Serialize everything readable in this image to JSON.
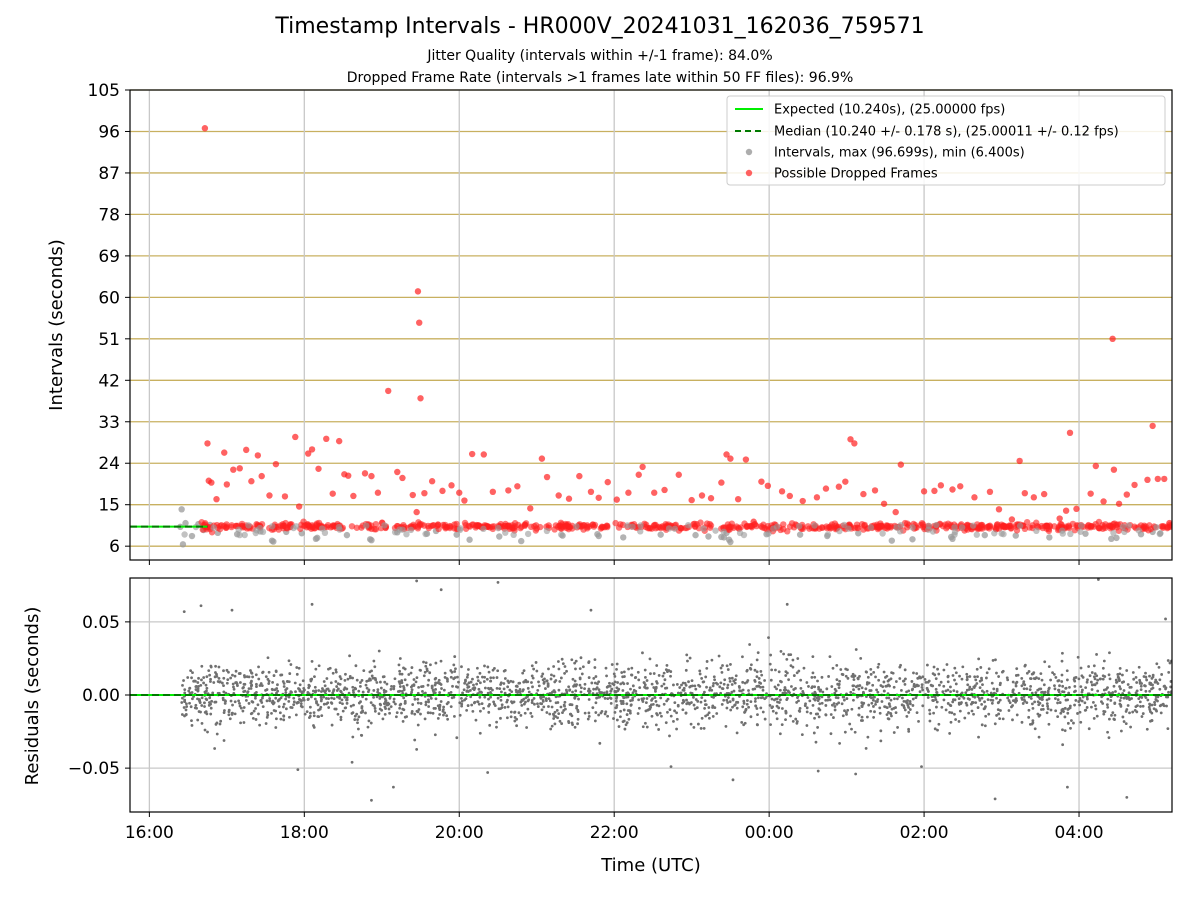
{
  "figure": {
    "title": "Timestamp Intervals - HR000V_20241031_162036_759571",
    "subtitle_1": "Jitter Quality (intervals within +/-1 frame): 84.0%",
    "subtitle_2": "Dropped Frame Rate (intervals >1 frames late within 50 FF files): 96.9%"
  },
  "colors": {
    "expected": "#00ee00",
    "median": "#007a00",
    "intervals": "#999999",
    "dropped": "#ff2020",
    "dropped_line": "#ff0000",
    "residuals": "#707070",
    "hgrid_top": "#c8b060",
    "grid": "#c8c8c8"
  },
  "chart_data": [
    {
      "type": "scatter",
      "panel": "intervals",
      "xlabel": "",
      "ylabel": "Intervals (seconds)",
      "xlim": [
        "15:45",
        "05:12"
      ],
      "ylim": [
        3,
        105
      ],
      "yticks": [
        6,
        15,
        24,
        33,
        42,
        51,
        60,
        69,
        78,
        87,
        96,
        105
      ],
      "xticks": [
        "16:00",
        "18:00",
        "20:00",
        "22:00",
        "00:00",
        "02:00",
        "04:00"
      ],
      "grid": "horizontal and vertical",
      "legend_position": "upper-right",
      "legend": [
        "Expected (10.240s), (25.00000 fps)",
        "Median (10.240 +/- 0.178 s), (25.00011 +/- 0.12 fps)",
        "Intervals, max (96.699s), min (6.400s)",
        "Possible Dropped Frames"
      ],
      "expected_interval": 10.24,
      "median_interval": 10.24,
      "series": [
        {
          "name": "Expected (10.240s), (25.00000 fps)",
          "type": "line",
          "x": [
            "15:45",
            "16:45"
          ],
          "y": [
            10.24,
            10.24
          ]
        },
        {
          "name": "Median (10.240 +/- 0.178 s), (25.00011 +/- 0.12 fps)",
          "type": "dashed-line",
          "x": [
            "15:45",
            "16:45"
          ],
          "y": [
            10.24,
            10.24
          ]
        },
        {
          "name": "Intervals, max (96.699s), min (6.400s)",
          "type": "scatter",
          "points": [
            [
              "16:24",
              10.2
            ],
            [
              "16:25",
              14.0
            ],
            [
              "16:26",
              6.4
            ],
            [
              "16:28",
              11.0
            ],
            [
              "16:33",
              8.2
            ],
            [
              "16:38",
              10.8
            ],
            [
              "16:42",
              9.5
            ],
            [
              "16:47",
              10.6
            ],
            [
              "16:53",
              8.9
            ],
            [
              "17:08",
              8.6
            ],
            [
              "17:26",
              9.2
            ],
            [
              "17:35",
              7.2
            ],
            [
              "17:36",
              7.0
            ],
            [
              "17:46",
              9.1
            ],
            [
              "17:58",
              8.8
            ],
            [
              "18:09",
              7.6
            ],
            [
              "18:10",
              7.8
            ],
            [
              "18:33",
              8.4
            ],
            [
              "18:51",
              7.5
            ],
            [
              "18:52",
              7.3
            ],
            [
              "19:12",
              9.0
            ],
            [
              "19:35",
              8.7
            ],
            [
              "19:42",
              9.3
            ],
            [
              "19:58",
              8.5
            ],
            [
              "20:08",
              7.4
            ],
            [
              "20:31",
              8.1
            ],
            [
              "20:48",
              7.1
            ],
            [
              "21:20",
              8.3
            ],
            [
              "21:47",
              8.6
            ],
            [
              "21:48",
              8.2
            ],
            [
              "22:07",
              7.9
            ],
            [
              "22:36",
              8.5
            ],
            [
              "23:03",
              8.4
            ],
            [
              "23:13",
              8.1
            ],
            [
              "23:23",
              8.0
            ],
            [
              "23:25",
              7.9
            ],
            [
              "23:27",
              8.9
            ],
            [
              "23:29",
              7.4
            ],
            [
              "23:30",
              6.9
            ],
            [
              "23:58",
              8.6
            ],
            [
              "00:24",
              8.5
            ],
            [
              "00:45",
              8.2
            ],
            [
              "01:09",
              8.8
            ],
            [
              "01:35",
              7.2
            ],
            [
              "01:51",
              7.5
            ],
            [
              "02:21",
              8.0
            ],
            [
              "02:22",
              7.6
            ],
            [
              "02:47",
              8.4
            ],
            [
              "03:11",
              8.3
            ],
            [
              "03:37",
              7.9
            ],
            [
              "04:05",
              8.7
            ],
            [
              "04:25",
              7.6
            ],
            [
              "04:29",
              7.8
            ],
            [
              "04:48",
              8.6
            ],
            [
              "04:57",
              9.1
            ],
            [
              "05:03",
              8.8
            ]
          ]
        },
        {
          "name": "Possible Dropped Frames",
          "type": "scatter",
          "points": [
            [
              "16:43",
              96.7
            ],
            [
              "16:45",
              28.3
            ],
            [
              "16:46",
              20.2
            ],
            [
              "16:48",
              19.8
            ],
            [
              "16:52",
              16.2
            ],
            [
              "16:58",
              26.3
            ],
            [
              "17:00",
              19.4
            ],
            [
              "17:05",
              22.6
            ],
            [
              "17:10",
              22.9
            ],
            [
              "17:15",
              26.9
            ],
            [
              "17:19",
              20.1
            ],
            [
              "17:24",
              25.7
            ],
            [
              "17:27",
              21.2
            ],
            [
              "17:33",
              17.0
            ],
            [
              "17:38",
              23.8
            ],
            [
              "17:45",
              16.8
            ],
            [
              "17:53",
              29.7
            ],
            [
              "17:56",
              14.6
            ],
            [
              "18:03",
              26.1
            ],
            [
              "18:06",
              27.0
            ],
            [
              "18:11",
              22.8
            ],
            [
              "18:17",
              29.3
            ],
            [
              "18:22",
              17.4
            ],
            [
              "18:27",
              28.8
            ],
            [
              "18:31",
              21.6
            ],
            [
              "18:34",
              21.3
            ],
            [
              "18:38",
              16.9
            ],
            [
              "18:47",
              21.8
            ],
            [
              "18:52",
              21.2
            ],
            [
              "18:57",
              17.6
            ],
            [
              "19:05",
              39.7
            ],
            [
              "19:12",
              22.1
            ],
            [
              "19:16",
              20.8
            ],
            [
              "19:24",
              17.1
            ],
            [
              "19:27",
              13.4
            ],
            [
              "19:28",
              61.3
            ],
            [
              "19:29",
              54.5
            ],
            [
              "19:30",
              38.1
            ],
            [
              "19:33",
              17.5
            ],
            [
              "19:39",
              20.1
            ],
            [
              "19:47",
              18.0
            ],
            [
              "19:54",
              19.2
            ],
            [
              "20:00",
              17.6
            ],
            [
              "20:04",
              15.9
            ],
            [
              "20:10",
              26.0
            ],
            [
              "20:19",
              25.9
            ],
            [
              "20:26",
              17.8
            ],
            [
              "20:38",
              18.1
            ],
            [
              "20:45",
              19.0
            ],
            [
              "20:55",
              14.2
            ],
            [
              "21:04",
              25.0
            ],
            [
              "21:08",
              21.0
            ],
            [
              "21:17",
              17.0
            ],
            [
              "21:25",
              16.3
            ],
            [
              "21:33",
              21.2
            ],
            [
              "21:42",
              17.8
            ],
            [
              "21:48",
              16.5
            ],
            [
              "21:55",
              19.9
            ],
            [
              "22:02",
              16.1
            ],
            [
              "22:11",
              17.6
            ],
            [
              "22:19",
              21.5
            ],
            [
              "22:22",
              23.2
            ],
            [
              "22:31",
              17.6
            ],
            [
              "22:39",
              18.2
            ],
            [
              "22:50",
              21.5
            ],
            [
              "23:00",
              16.0
            ],
            [
              "23:08",
              17.0
            ],
            [
              "23:15",
              16.4
            ],
            [
              "23:23",
              19.8
            ],
            [
              "23:27",
              25.9
            ],
            [
              "23:30",
              25.0
            ],
            [
              "23:36",
              16.2
            ],
            [
              "23:42",
              24.8
            ],
            [
              "23:48",
              11.3
            ],
            [
              "23:54",
              20.0
            ],
            [
              "23:59",
              19.1
            ],
            [
              "00:10",
              17.9
            ],
            [
              "00:16",
              16.9
            ],
            [
              "00:26",
              15.8
            ],
            [
              "00:37",
              16.6
            ],
            [
              "00:44",
              18.5
            ],
            [
              "00:54",
              18.9
            ],
            [
              "00:59",
              20.0
            ],
            [
              "01:03",
              29.2
            ],
            [
              "01:06",
              28.3
            ],
            [
              "01:13",
              17.3
            ],
            [
              "01:22",
              18.1
            ],
            [
              "01:29",
              15.2
            ],
            [
              "01:38",
              13.4
            ],
            [
              "01:42",
              23.7
            ],
            [
              "02:00",
              17.9
            ],
            [
              "02:08",
              18.0
            ],
            [
              "02:13",
              19.2
            ],
            [
              "02:22",
              18.3
            ],
            [
              "02:28",
              19.0
            ],
            [
              "02:39",
              16.6
            ],
            [
              "02:51",
              17.8
            ],
            [
              "02:58",
              14.0
            ],
            [
              "03:08",
              11.8
            ],
            [
              "03:14",
              24.5
            ],
            [
              "03:18",
              17.5
            ],
            [
              "03:25",
              16.6
            ],
            [
              "03:33",
              17.3
            ],
            [
              "03:45",
              12.0
            ],
            [
              "03:50",
              13.7
            ],
            [
              "03:53",
              30.6
            ],
            [
              "03:58",
              14.1
            ],
            [
              "04:09",
              17.4
            ],
            [
              "04:13",
              23.4
            ],
            [
              "04:19",
              15.7
            ],
            [
              "04:26",
              51.0
            ],
            [
              "04:27",
              22.6
            ],
            [
              "04:31",
              15.2
            ],
            [
              "04:37",
              17.2
            ],
            [
              "04:43",
              19.3
            ],
            [
              "04:53",
              20.4
            ],
            [
              "04:57",
              32.1
            ],
            [
              "05:01",
              20.6
            ],
            [
              "05:06",
              20.6
            ],
            [
              "05:10",
              11.0
            ]
          ]
        }
      ]
    },
    {
      "type": "scatter",
      "panel": "residuals",
      "xlabel": "Time (UTC)",
      "ylabel": "Residuals (seconds)",
      "xlim": [
        "15:45",
        "05:12"
      ],
      "ylim": [
        -0.08,
        0.08
      ],
      "yticks": [
        -0.05,
        0.0,
        0.05
      ],
      "ytick_labels": [
        "−0.05",
        "0.00",
        "0.05"
      ],
      "xticks": [
        "16:00",
        "18:00",
        "20:00",
        "22:00",
        "00:00",
        "02:00",
        "04:00"
      ],
      "grid": "horizontal and vertical",
      "series": [
        {
          "name": "Expected",
          "type": "line",
          "x": [
            "15:45",
            "05:12"
          ],
          "y": [
            0.0,
            0.0
          ]
        },
        {
          "name": "Median",
          "type": "dashed-line",
          "x": [
            "15:45",
            "05:12"
          ],
          "y": [
            0.0,
            0.0
          ]
        },
        {
          "name": "Residuals",
          "type": "scatter",
          "distribution": {
            "x_start": "16:25",
            "x_end": "05:12",
            "center": 0.0,
            "typical_spread": 0.02,
            "range": [
              -0.08,
              0.08
            ]
          },
          "points": [
            [
              "16:27",
              0.057
            ],
            [
              "16:40",
              0.061
            ],
            [
              "17:04",
              0.058
            ],
            [
              "17:55",
              -0.051
            ],
            [
              "18:06",
              0.062
            ],
            [
              "18:37",
              -0.046
            ],
            [
              "18:52",
              -0.072
            ],
            [
              "19:09",
              -0.063
            ],
            [
              "19:27",
              0.078
            ],
            [
              "19:46",
              0.072
            ],
            [
              "20:22",
              -0.053
            ],
            [
              "20:30",
              0.077
            ],
            [
              "21:42",
              0.058
            ],
            [
              "22:44",
              -0.049
            ],
            [
              "23:32",
              -0.058
            ],
            [
              "00:38",
              -0.052
            ],
            [
              "01:07",
              -0.054
            ],
            [
              "01:58",
              -0.049
            ],
            [
              "02:55",
              -0.071
            ],
            [
              "03:51",
              -0.063
            ],
            [
              "04:15",
              0.079
            ],
            [
              "04:37",
              -0.07
            ],
            [
              "05:07",
              0.052
            ],
            [
              "00:14",
              0.062
            ]
          ]
        }
      ]
    }
  ]
}
